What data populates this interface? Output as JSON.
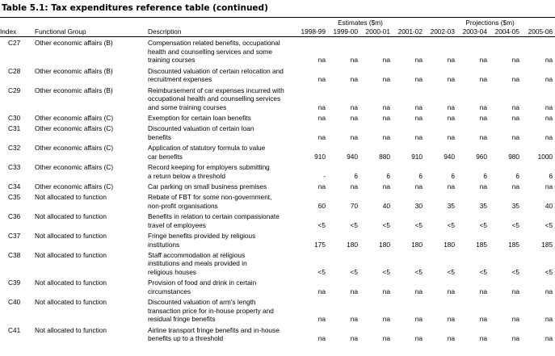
{
  "title": "Table 5.1: Tax expenditures reference table (continued)",
  "table": {
    "group_headers": [
      "Estimates ($m)",
      "Projections ($m)"
    ],
    "columns": [
      "Index",
      "Functional Group",
      "Description",
      "1998-99",
      "1999-00",
      "2000-01",
      "2001-02",
      "2002-03",
      "2003-04",
      "2004-05",
      "2005-06"
    ],
    "rows": [
      {
        "index": "C27",
        "group": "Other economic affairs (B)",
        "description": [
          "Compensation related benefits, occupational",
          "health and counselling services and some",
          "training courses"
        ],
        "values": [
          "na",
          "na",
          "na",
          "na",
          "na",
          "na",
          "na",
          "na"
        ]
      },
      {
        "index": "C28",
        "group": "Other economic affairs (B)",
        "description": [
          "Discounted valuation of certain relocation and",
          "recruitment expenses"
        ],
        "values": [
          "na",
          "na",
          "na",
          "na",
          "na",
          "na",
          "na",
          "na"
        ]
      },
      {
        "index": "C29",
        "group": "Other economic affairs (B)",
        "description": [
          "Reimbursement of car expenses incurred with",
          "occupational health and counselling services",
          "and some training courses"
        ],
        "values": [
          "na",
          "na",
          "na",
          "na",
          "na",
          "na",
          "na",
          "na"
        ]
      },
      {
        "index": "C30",
        "group": "Other economic affairs (C)",
        "description": [
          "Exemption for certain loan benefits"
        ],
        "values": [
          "na",
          "na",
          "na",
          "na",
          "na",
          "na",
          "na",
          "na"
        ]
      },
      {
        "index": "C31",
        "group": "Other economic affairs (C)",
        "description": [
          "Discounted valuation of certain loan",
          "benefits"
        ],
        "values": [
          "na",
          "na",
          "na",
          "na",
          "na",
          "na",
          "na",
          "na"
        ]
      },
      {
        "index": "C32",
        "group": "Other economic affairs (C)",
        "description": [
          "Application of statutory formula to value",
          "car benefits"
        ],
        "values": [
          "910",
          "940",
          "880",
          "910",
          "940",
          "960",
          "980",
          "1000"
        ]
      },
      {
        "index": "C33",
        "group": "Other economic affairs (C)",
        "description": [
          "Record keeping for employers submitting",
          "a return below a threshold"
        ],
        "values": [
          "-",
          "6",
          "6",
          "6",
          "6",
          "6",
          "6",
          "6"
        ]
      },
      {
        "index": "C34",
        "group": "Other economic affairs (C)",
        "description": [
          "Car parking on small business premises"
        ],
        "values": [
          "na",
          "na",
          "na",
          "na",
          "na",
          "na",
          "na",
          "na"
        ]
      },
      {
        "index": "C35",
        "group": "Not allocated to function",
        "description": [
          "Rebate of FBT for some non-government,",
          "non-profit organisations"
        ],
        "values": [
          "60",
          "70",
          "40",
          "30",
          "35",
          "35",
          "35",
          "40"
        ]
      },
      {
        "index": "C36",
        "group": "Not allocated to function",
        "description": [
          "Benefits in relation to certain compassionate",
          "travel of employees"
        ],
        "values": [
          "<5",
          "<5",
          "<5",
          "<5",
          "<5",
          "<5",
          "<5",
          "<5"
        ]
      },
      {
        "index": "C37",
        "group": "Not allocated to function",
        "description": [
          "Fringe benefits provided by religious",
          "institutions"
        ],
        "values": [
          "175",
          "180",
          "180",
          "180",
          "180",
          "185",
          "185",
          "185"
        ]
      },
      {
        "index": "C38",
        "group": "Not allocated to function",
        "description": [
          "Staff accommodation at religious",
          "institutions and meals provided in",
          "religious houses"
        ],
        "values": [
          "<5",
          "<5",
          "<5",
          "<5",
          "<5",
          "<5",
          "<5",
          "<5"
        ]
      },
      {
        "index": "C39",
        "group": "Not allocated to function",
        "description": [
          "Provision of food and drink in certain",
          "circumstances"
        ],
        "values": [
          "na",
          "na",
          "na",
          "na",
          "na",
          "na",
          "na",
          "na"
        ]
      },
      {
        "index": "C40",
        "group": "Not allocated to function",
        "description": [
          "Discounted valuation of arm's length",
          "transaction price for in-house property and",
          "residual fringe benefits"
        ],
        "values": [
          "na",
          "na",
          "na",
          "na",
          "na",
          "na",
          "na",
          "na"
        ]
      },
      {
        "index": "C41",
        "group": "Not allocated to function",
        "description": [
          "Airline transport fringe benefits and in-house",
          "benefits up to a threshold"
        ],
        "values": [
          "na",
          "na",
          "na",
          "na",
          "na",
          "na",
          "na",
          "na"
        ]
      }
    ]
  }
}
